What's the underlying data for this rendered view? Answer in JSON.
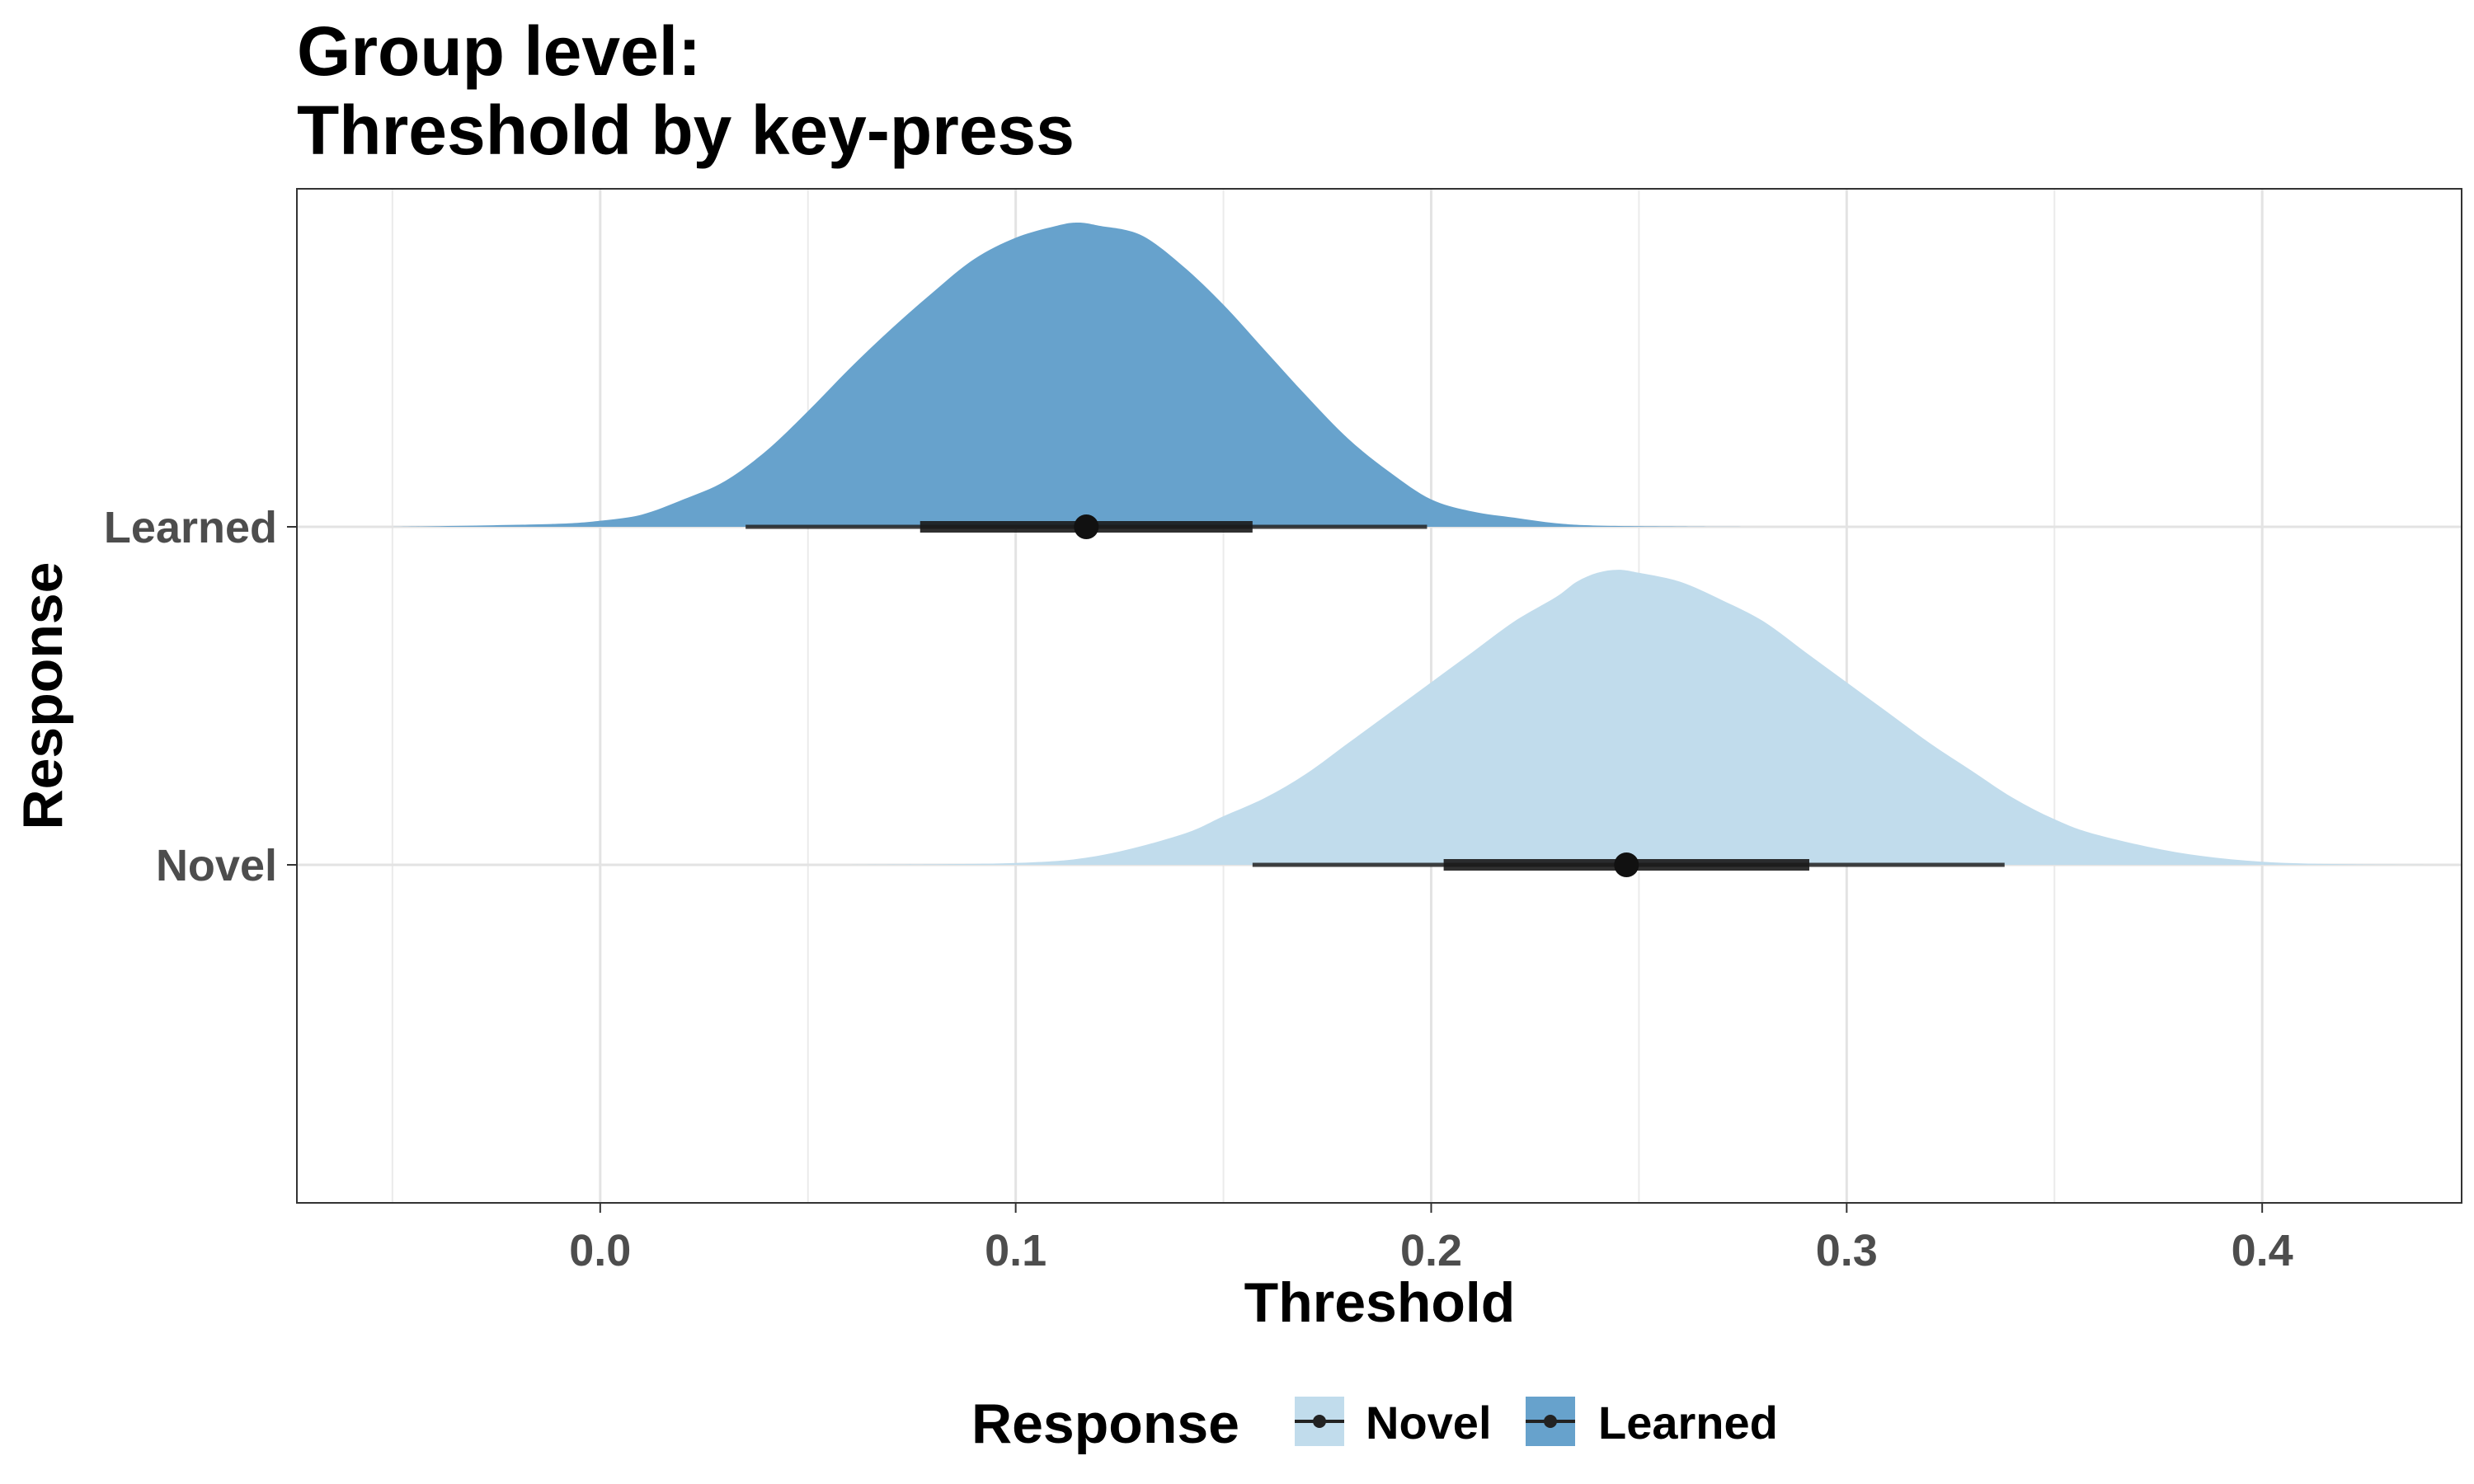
{
  "chart_data": {
    "type": "area",
    "title": [
      "Group level:",
      "Threshold by key-press"
    ],
    "xlabel": "Threshold",
    "ylabel": "Response",
    "xlim": [
      -0.073,
      0.448
    ],
    "x_ticks": [
      0.0,
      0.1,
      0.2,
      0.3,
      0.4
    ],
    "x_tick_labels": [
      "0.0",
      "0.1",
      "0.2",
      "0.3",
      "0.4"
    ],
    "y_categories": [
      "Learned",
      "Novel"
    ],
    "grid": true,
    "legend": {
      "title": "Response",
      "position": "bottom",
      "entries": [
        "Novel",
        "Learned"
      ]
    },
    "series": [
      {
        "name": "Novel",
        "color": "#c1dcec",
        "density_x": [
          0.06,
          0.1,
          0.12,
          0.14,
          0.15,
          0.16,
          0.17,
          0.18,
          0.19,
          0.2,
          0.21,
          0.22,
          0.23,
          0.235,
          0.24,
          0.245,
          0.25,
          0.26,
          0.27,
          0.28,
          0.29,
          0.3,
          0.31,
          0.32,
          0.33,
          0.34,
          0.35,
          0.36,
          0.38,
          0.4,
          0.42,
          0.44
        ],
        "density_y": [
          0,
          0.006,
          0.03,
          0.1,
          0.16,
          0.22,
          0.3,
          0.4,
          0.5,
          0.6,
          0.7,
          0.8,
          0.88,
          0.93,
          0.96,
          0.97,
          0.96,
          0.93,
          0.87,
          0.8,
          0.7,
          0.6,
          0.5,
          0.4,
          0.31,
          0.22,
          0.15,
          0.1,
          0.04,
          0.01,
          0.002,
          0
        ],
        "median": 0.247,
        "interval_66": [
          0.203,
          0.291
        ],
        "interval_95": [
          0.157,
          0.338
        ]
      },
      {
        "name": "Learned",
        "color": "#67a2cc",
        "density_x": [
          -0.05,
          -0.03,
          -0.01,
          0.0,
          0.01,
          0.02,
          0.03,
          0.04,
          0.05,
          0.06,
          0.07,
          0.08,
          0.09,
          0.1,
          0.11,
          0.115,
          0.12,
          0.13,
          0.14,
          0.15,
          0.16,
          0.17,
          0.18,
          0.19,
          0.2,
          0.21,
          0.22,
          0.23,
          0.24,
          0.26,
          0.28
        ],
        "density_y": [
          0,
          0.004,
          0.01,
          0.02,
          0.04,
          0.09,
          0.15,
          0.25,
          0.38,
          0.52,
          0.65,
          0.77,
          0.88,
          0.95,
          0.99,
          1.0,
          0.99,
          0.96,
          0.86,
          0.73,
          0.58,
          0.43,
          0.29,
          0.18,
          0.09,
          0.05,
          0.03,
          0.012,
          0.004,
          0.001,
          0
        ],
        "median": 0.117,
        "interval_66": [
          0.077,
          0.157
        ],
        "interval_95": [
          0.035,
          0.199
        ]
      }
    ]
  }
}
